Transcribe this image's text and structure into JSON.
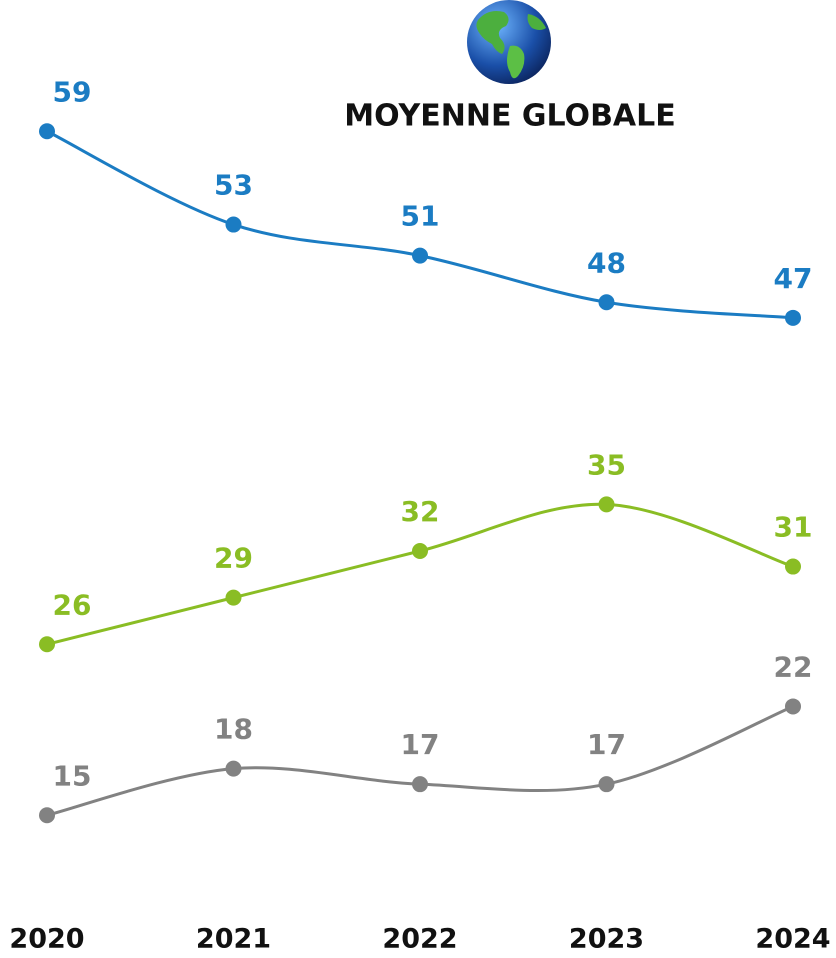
{
  "chart_data": {
    "type": "line",
    "title": "MOYENNE GLOBALE",
    "categories": [
      "2020",
      "2021",
      "2022",
      "2023",
      "2024"
    ],
    "series": [
      {
        "color": "#1b7cc3",
        "values": [
          59,
          53,
          51,
          48,
          47
        ]
      },
      {
        "color": "#8abd24",
        "values": [
          26,
          29,
          32,
          35,
          31
        ]
      },
      {
        "color": "#828282",
        "values": [
          15,
          18,
          17,
          17,
          22
        ]
      }
    ],
    "ylim": [
      10,
      65
    ]
  }
}
